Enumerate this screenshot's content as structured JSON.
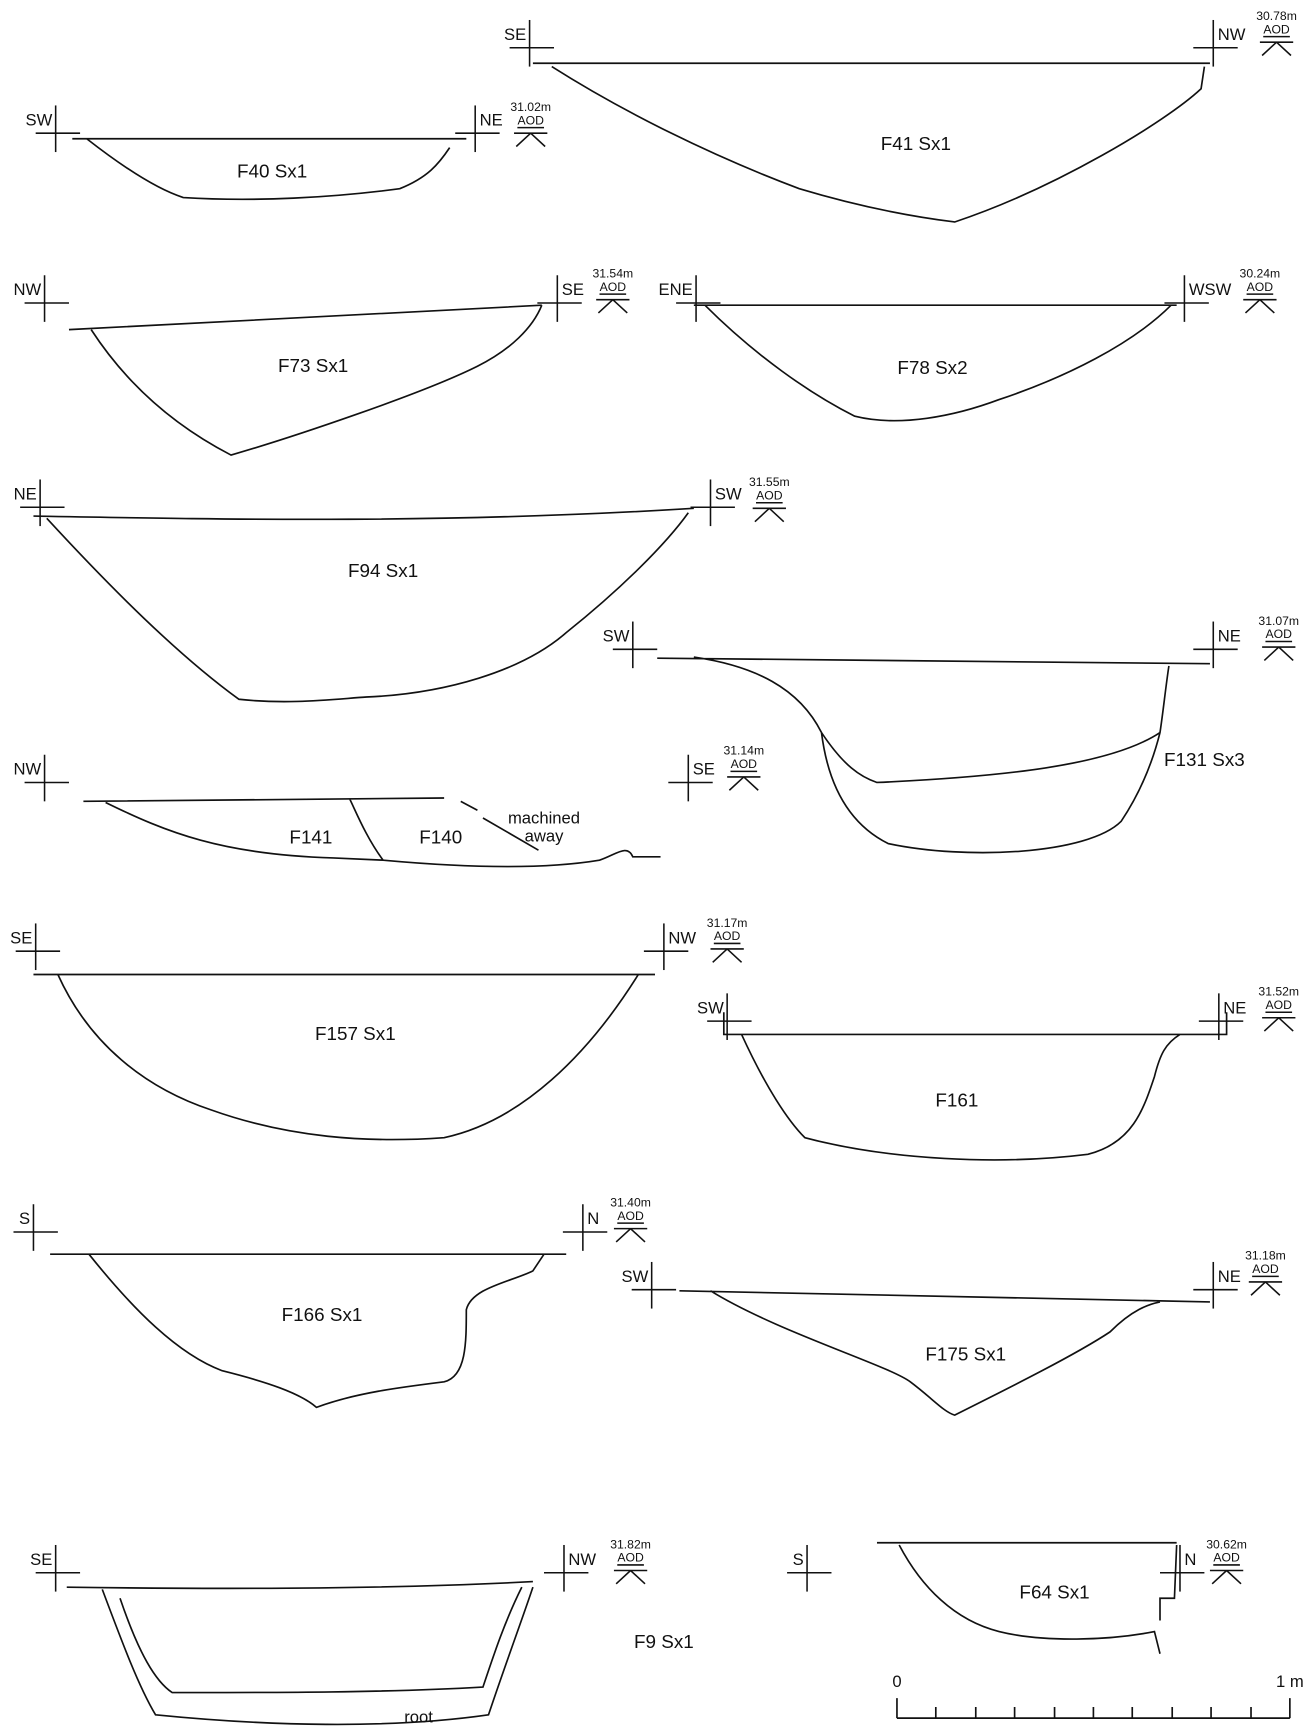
{
  "sections": [
    {
      "label": "F40 Sx1",
      "left": "SW",
      "right": "NE",
      "level": "31.02m",
      "datum": "AOD"
    },
    {
      "label": "F41 Sx1",
      "left": "SE",
      "right": "NW",
      "level": "30.78m",
      "datum": "AOD"
    },
    {
      "label": "F73 Sx1",
      "left": "NW",
      "right": "SE",
      "level": "31.54m",
      "datum": "AOD"
    },
    {
      "label": "F78 Sx2",
      "left": "ENE",
      "right": "WSW",
      "level": "30.24m",
      "datum": "AOD"
    },
    {
      "label": "F94 Sx1",
      "left": "NE",
      "right": "SW",
      "level": "31.55m",
      "datum": "AOD"
    },
    {
      "label": "F131 Sx3",
      "left": "SW",
      "right": "NE",
      "level": "31.07m",
      "datum": "AOD"
    },
    {
      "labels": [
        "F141",
        "F140"
      ],
      "left": "NW",
      "right": "SE",
      "level": "31.14m",
      "datum": "AOD",
      "note": [
        "machined",
        "away"
      ]
    },
    {
      "label": "F157 Sx1",
      "left": "SE",
      "right": "NW",
      "level": "31.17m",
      "datum": "AOD"
    },
    {
      "label": "F161",
      "left": "SW",
      "right": "NE",
      "level": "31.52m",
      "datum": "AOD"
    },
    {
      "label": "F166 Sx1",
      "left": "S",
      "right": "N",
      "level": "31.40m",
      "datum": "AOD"
    },
    {
      "label": "F175 Sx1",
      "left": "SW",
      "right": "NE",
      "level": "31.18m",
      "datum": "AOD"
    },
    {
      "label": "F9 Sx1",
      "left": "SE",
      "right": "NW",
      "level": "31.82m",
      "datum": "AOD",
      "note": [
        "root"
      ]
    },
    {
      "label": "F64 Sx1",
      "left": "S",
      "right": "N",
      "level": "30.62m",
      "datum": "AOD"
    }
  ],
  "scale": {
    "start": "0",
    "end": "1 m"
  }
}
